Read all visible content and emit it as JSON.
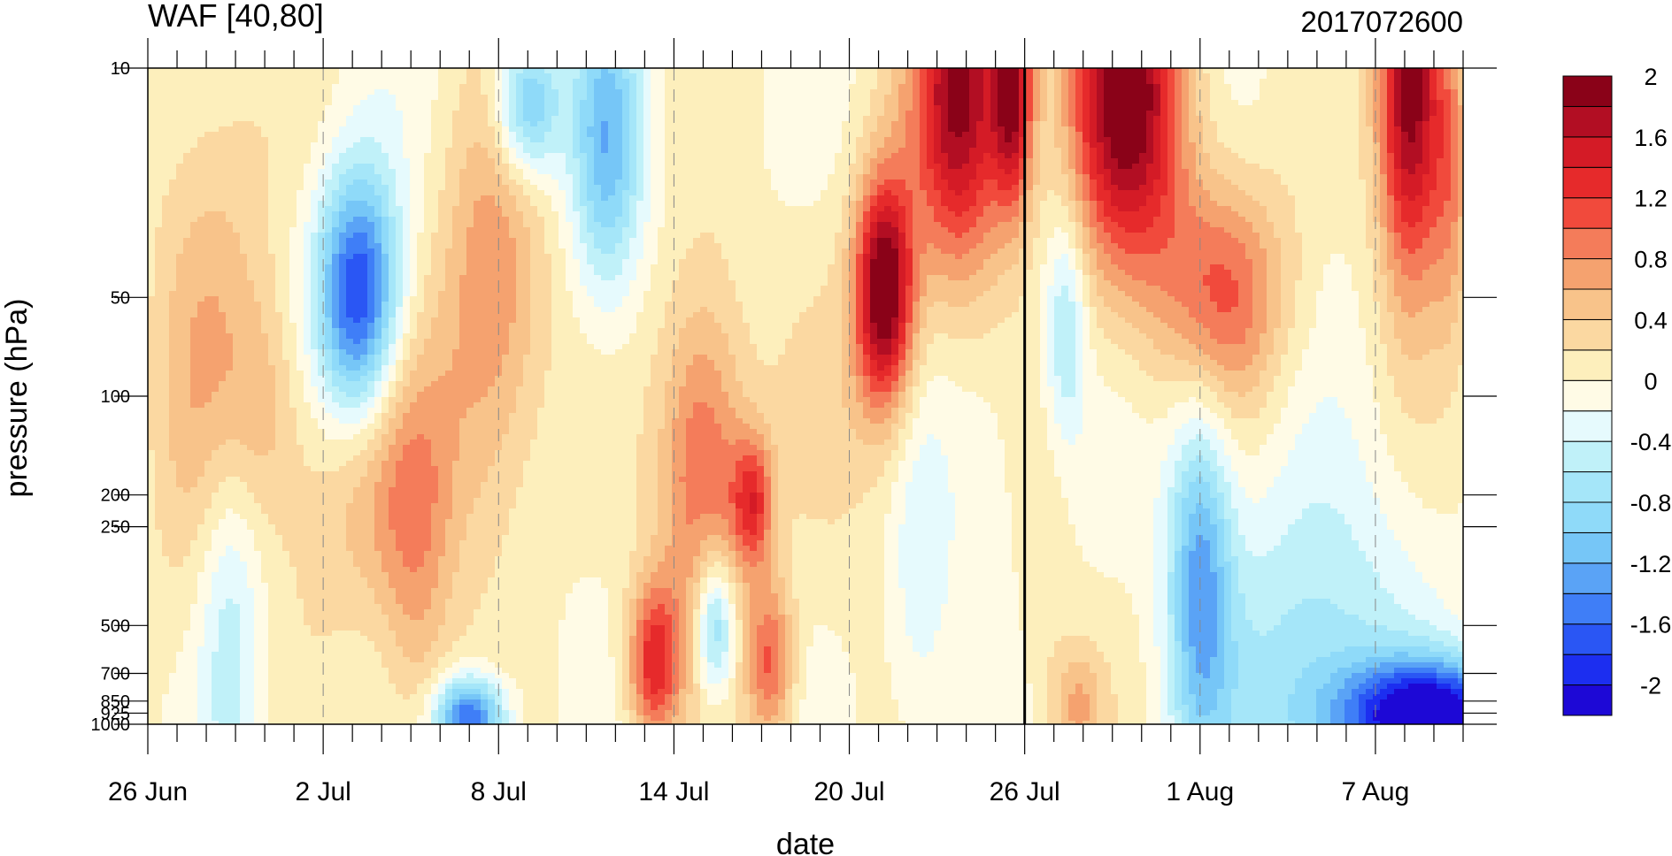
{
  "chart_data": {
    "type": "heatmap",
    "title": "WAF [40,80]",
    "date_label": "2017072600",
    "xlabel": "date",
    "ylabel": "pressure (hPa)",
    "x_ticks": [
      "26 Jun",
      "2 Jul",
      "8 Jul",
      "14 Jul",
      "20 Jul",
      "26 Jul",
      "1 Aug",
      "7 Aug"
    ],
    "x_tick_days": [
      0,
      6,
      12,
      18,
      24,
      30,
      36,
      42
    ],
    "x_range_days": [
      0,
      45
    ],
    "y_ticks": [
      10,
      50,
      100,
      200,
      250,
      500,
      700,
      850,
      925,
      1000
    ],
    "y_tick_labels": [
      "10",
      "50",
      "100",
      "200",
      "250",
      "500",
      "700",
      "850",
      "925",
      "1000"
    ],
    "y_scale": "log",
    "y_range": [
      10,
      1000
    ],
    "marker_day": 30,
    "colorbar": {
      "min": -2.2,
      "step": 0.2,
      "colors": [
        "#1d08d6",
        "#1c2ef0",
        "#2a56f4",
        "#3f7ef7",
        "#5aa3f6",
        "#76c6f7",
        "#8fdaf9",
        "#a5e6f9",
        "#c0f1f9",
        "#e6fafd",
        "#fffbe6",
        "#fdefbc",
        "#fbd8a1",
        "#f8c38a",
        "#f5a26f",
        "#f47c5a",
        "#f14a3c",
        "#e62a2b",
        "#d41b26",
        "#b20e23",
        "#8a0218"
      ],
      "labels": [
        "2",
        "1.6",
        "1.2",
        "0.8",
        "0.4",
        "0",
        "-0.4",
        "-0.8",
        "-1.2",
        "-1.6",
        "-2"
      ],
      "label_values": [
        2,
        1.6,
        1.2,
        0.8,
        0.4,
        0,
        -0.4,
        -0.8,
        -1.2,
        -1.6,
        -2
      ]
    },
    "features": [
      {
        "day": 33.5,
        "p": 12,
        "v": 2.0,
        "sx": 2.0,
        "sy": 0.55
      },
      {
        "day": 27.8,
        "p": 12,
        "v": 1.9,
        "sx": 1.6,
        "sy": 0.55
      },
      {
        "day": 29.6,
        "p": 12,
        "v": 1.6,
        "sx": 0.7,
        "sy": 0.35
      },
      {
        "day": 25.2,
        "p": 48,
        "v": 2.1,
        "sx": 1.0,
        "sy": 0.35
      },
      {
        "day": 43.2,
        "p": 11,
        "v": 2.1,
        "sx": 1.1,
        "sy": 0.6
      },
      {
        "day": 44.6,
        "p": 20,
        "v": 0.7,
        "sx": 0.7,
        "sy": 0.5
      },
      {
        "day": 36.8,
        "p": 48,
        "v": 1.0,
        "sx": 2.2,
        "sy": 0.35
      },
      {
        "day": 40.6,
        "p": 50,
        "v": -0.1,
        "sx": 0.4,
        "sy": 0.12
      },
      {
        "day": 31.4,
        "p": 60,
        "v": -0.7,
        "sx": 0.7,
        "sy": 0.35
      },
      {
        "day": 28.6,
        "p": 140,
        "v": -0.2,
        "sx": 1.5,
        "sy": 0.55
      },
      {
        "day": 7.2,
        "p": 50,
        "v": -1.9,
        "sx": 1.4,
        "sy": 0.38
      },
      {
        "day": 2.2,
        "p": 80,
        "v": 0.6,
        "sx": 2.0,
        "sy": 0.9
      },
      {
        "day": 11.8,
        "p": 50,
        "v": 0.8,
        "sx": 1.8,
        "sy": 0.6
      },
      {
        "day": 8.0,
        "p": 180,
        "v": 0.6,
        "sx": 3.0,
        "sy": 0.45
      },
      {
        "day": 9.2,
        "p": 430,
        "v": 0.45,
        "sx": 1.2,
        "sy": 0.6
      },
      {
        "day": 19.0,
        "p": 170,
        "v": 1.1,
        "sx": 1.5,
        "sy": 0.55
      },
      {
        "day": 17.3,
        "p": 650,
        "v": 1.3,
        "sx": 0.9,
        "sy": 0.25
      },
      {
        "day": 21.3,
        "p": 650,
        "v": 1.0,
        "sx": 0.8,
        "sy": 0.25
      },
      {
        "day": 20.7,
        "p": 210,
        "v": 1.1,
        "sx": 0.7,
        "sy": 0.2
      },
      {
        "day": 15.7,
        "p": 17,
        "v": -1.1,
        "sx": 1.2,
        "sy": 0.45
      },
      {
        "day": 13.0,
        "p": 13,
        "v": -1.2,
        "sx": 1.1,
        "sy": 0.22
      },
      {
        "day": 24.2,
        "p": 120,
        "v": 0.2,
        "sx": 3.0,
        "sy": 0.6
      },
      {
        "day": 19.4,
        "p": 500,
        "v": -1.2,
        "sx": 0.7,
        "sy": 0.22
      },
      {
        "day": 36.0,
        "p": 350,
        "v": -1.2,
        "sx": 1.1,
        "sy": 0.55
      },
      {
        "day": 44.0,
        "p": 930,
        "v": -2.2,
        "sx": 3.0,
        "sy": 0.16
      },
      {
        "day": 40.0,
        "p": 800,
        "v": -0.8,
        "sx": 3.5,
        "sy": 0.6
      },
      {
        "day": 11.0,
        "p": 950,
        "v": -1.7,
        "sx": 1.2,
        "sy": 0.12
      },
      {
        "day": 2.8,
        "p": 400,
        "v": -0.7,
        "sx": 1.2,
        "sy": 0.65
      },
      {
        "day": 3.8,
        "p": 110,
        "v": 0.35,
        "sx": 1.4,
        "sy": 0.35
      },
      {
        "day": 30.6,
        "p": 400,
        "v": 0.2,
        "sx": 0.9,
        "sy": 0.45
      },
      {
        "day": 26.4,
        "p": 350,
        "v": -0.4,
        "sx": 1.1,
        "sy": 0.55
      },
      {
        "day": 19.0,
        "p": 260,
        "v": -0.1,
        "sx": 0.5,
        "sy": 0.15
      },
      {
        "day": 31.8,
        "p": 880,
        "v": 0.6,
        "sx": 0.9,
        "sy": 0.18
      }
    ]
  }
}
